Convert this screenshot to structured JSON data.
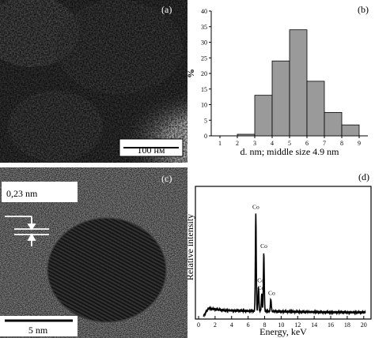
{
  "panel_a": {
    "label": "(a)",
    "scalebar": "100 нм"
  },
  "panel_c": {
    "label": "(c)",
    "lattice_spacing": "0,23 nm",
    "scalebar": "5 nm"
  },
  "panel_b": {
    "label": "(b)"
  },
  "panel_d": {
    "label": "(d)",
    "peak_label": "Co"
  },
  "chart_data": [
    {
      "type": "bar",
      "panel": "(b)",
      "ylabel": "%",
      "xlabel": "d. nm; middle size 4.9 nm",
      "xlim": [
        0.5,
        9.5
      ],
      "ylim": [
        0,
        40
      ],
      "xticks": [
        1,
        2,
        3,
        4,
        5,
        6,
        7,
        8,
        9
      ],
      "yticks": [
        0,
        5,
        10,
        15,
        20,
        25,
        30,
        35,
        40
      ],
      "bins": [
        {
          "from": 2,
          "to": 3,
          "value": 0.5
        },
        {
          "from": 3,
          "to": 4,
          "value": 13
        },
        {
          "from": 4,
          "to": 5,
          "value": 24
        },
        {
          "from": 5,
          "to": 6,
          "value": 34
        },
        {
          "from": 6,
          "to": 7,
          "value": 17.5
        },
        {
          "from": 7,
          "to": 8,
          "value": 7.5
        },
        {
          "from": 8,
          "to": 9,
          "value": 3.5
        }
      ],
      "bar_color": "#9a9a9a"
    },
    {
      "type": "line",
      "panel": "(d)",
      "ylabel": "Relative intensity",
      "xlabel": "Energy, keV",
      "xlim": [
        0,
        20.5
      ],
      "ylim": [
        0,
        1
      ],
      "xticks": [
        0,
        2,
        4,
        6,
        8,
        10,
        12,
        14,
        16,
        18,
        20
      ],
      "peaks": [
        {
          "x": 6.93,
          "y": 0.78
        },
        {
          "x": 7.25,
          "y": 0.2
        },
        {
          "x": 7.65,
          "y": 0.14
        },
        {
          "x": 7.9,
          "y": 0.47
        },
        {
          "x": 8.75,
          "y": 0.1
        }
      ],
      "baseline": [
        {
          "x": 0.6,
          "y": 0.0
        },
        {
          "x": 1.2,
          "y": 0.06
        },
        {
          "x": 3,
          "y": 0.045
        },
        {
          "x": 6,
          "y": 0.04
        },
        {
          "x": 10,
          "y": 0.035
        },
        {
          "x": 15,
          "y": 0.03
        },
        {
          "x": 20.2,
          "y": 0.028
        }
      ]
    }
  ]
}
